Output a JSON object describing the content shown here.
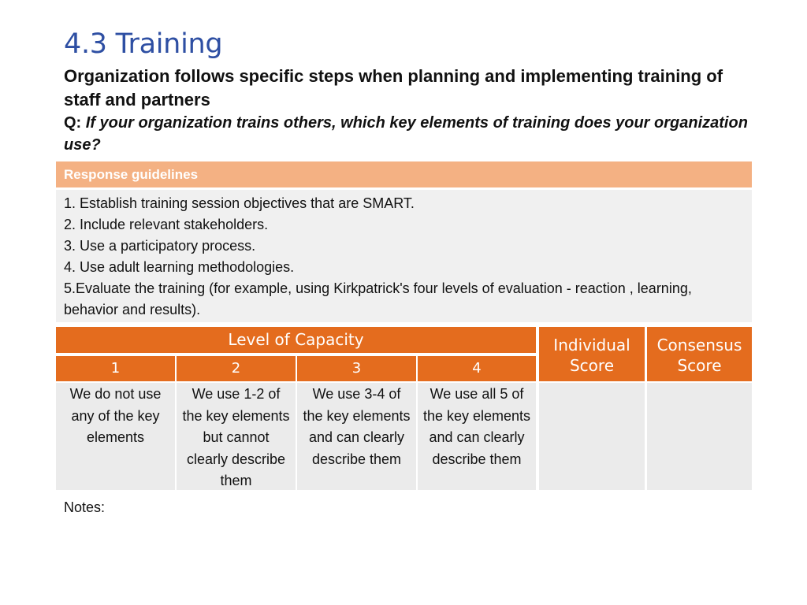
{
  "title": "4.3 Training",
  "subtitle": "Organization follows specific steps when planning and implementing training of staff and partners",
  "question": {
    "prefix": "Q:",
    "text": "If your organization trains others, which key elements of training does your organization use?"
  },
  "guidelines": {
    "header": "Response guidelines",
    "items": [
      "1. Establish training session objectives that are SMART.",
      "2. Include relevant stakeholders.",
      "3. Use a participatory process.",
      "4. Use adult learning methodologies.",
      "5.Evaluate the training (for example, using Kirkpatrick's four levels of evaluation - reaction , learning, behavior and results)."
    ]
  },
  "capacity": {
    "header": "Level of Capacity",
    "levels": [
      {
        "number": "1",
        "description": "We do not use any of the key elements"
      },
      {
        "number": "2",
        "description": "We use 1-2 of the key elements but cannot clearly describe them"
      },
      {
        "number": "3",
        "description": "We use 3-4 of the key elements and can clearly describe them"
      },
      {
        "number": "4",
        "description": "We use all 5 of the key elements and can clearly describe them"
      }
    ]
  },
  "scores": {
    "individual": "Individual Score",
    "consensus": "Consensus Score"
  },
  "notes_label": "Notes:",
  "colors": {
    "title": "#2e4fa3",
    "guidelines_header": "#f4b183",
    "table_header": "#e46c1e",
    "cell_background": "#ebebeb"
  }
}
